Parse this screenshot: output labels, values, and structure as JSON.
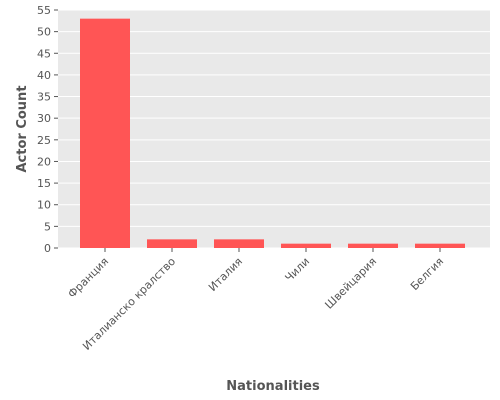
{
  "chart_data": {
    "type": "bar",
    "title": "",
    "xlabel": "Nationalities",
    "ylabel": "Actor Count",
    "categories": [
      "Франция",
      "Италианско кралство",
      "Италия",
      "Чили",
      "Швейцария",
      "Белгия"
    ],
    "values": [
      53,
      2,
      2,
      1,
      1,
      1
    ],
    "ylim": [
      0,
      55
    ],
    "yticks": [
      0,
      5,
      10,
      15,
      20,
      25,
      30,
      35,
      40,
      45,
      50,
      55
    ],
    "grid": true,
    "colors": {
      "bar": "#ff5555",
      "plot_background": "#e9e9e9",
      "grid": "#ffffff",
      "text": "#555555"
    }
  }
}
